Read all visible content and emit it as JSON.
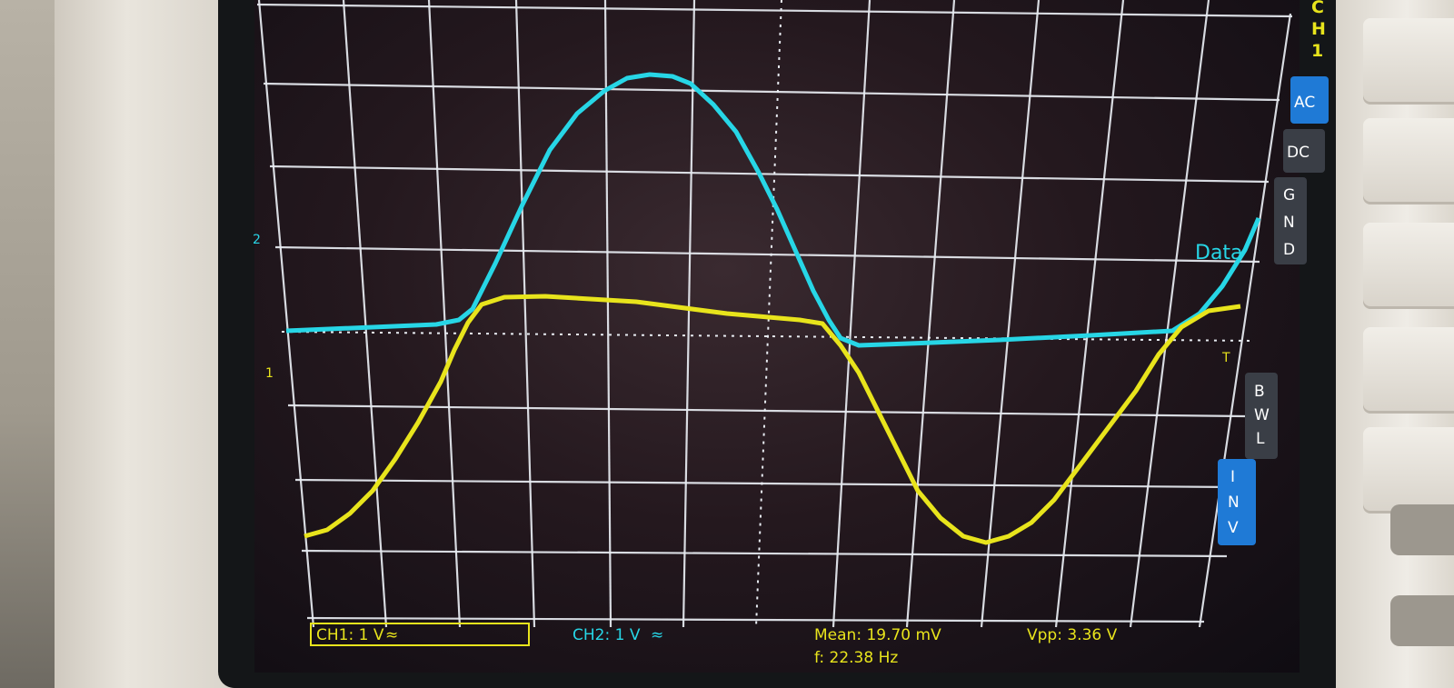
{
  "channel_menu": {
    "title_letters": [
      "C",
      "H",
      "1"
    ],
    "coupling_options": [
      "AC",
      "DC",
      "G N D"
    ],
    "selected_coupling": "AC",
    "bwl_label": "B W L",
    "inv_label": "I N V",
    "inv_active": true
  },
  "screen": {
    "ch2_trace_label": "Data",
    "ch2_marker": "2",
    "ch1_marker": "1",
    "trigger_marker": "T"
  },
  "status_bar": {
    "ch1": "CH1: 1 V",
    "ch1_symbol": "≈",
    "ch2": "CH2: 1 V",
    "ch2_symbol": "≈",
    "mean": "Mean: 19.70 mV",
    "vpp": "Vpp: 3.36 V",
    "freq": "f: 22.38 Hz"
  },
  "colors": {
    "ch1": "#e8e41c",
    "ch2": "#27d6e6",
    "grid": "#e8ecf2",
    "menu_highlight": "#1f7ad6"
  }
}
